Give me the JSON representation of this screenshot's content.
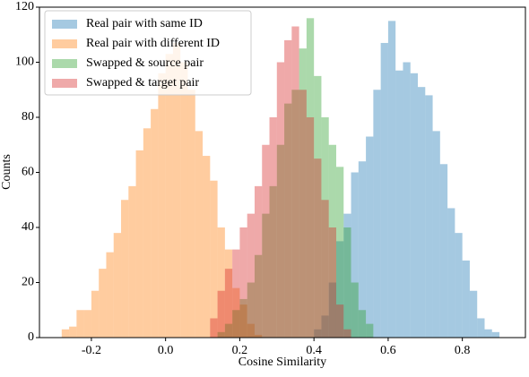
{
  "chart_data": {
    "type": "histogram",
    "xlabel": "Cosine Similarity",
    "ylabel": "Counts",
    "xlim": [
      -0.34,
      0.97
    ],
    "ylim": [
      0,
      120
    ],
    "xticks": [
      -0.2,
      {
        "value": 0,
        "label": "0.0"
      },
      0.2,
      0.4,
      0.6,
      0.8
    ],
    "yticks": [
      0,
      20,
      40,
      60,
      80,
      100,
      120
    ],
    "legend": "upper left",
    "opacity": 0.4,
    "series": [
      {
        "name": "Real pair with same ID",
        "color": "#1f77b4",
        "bins": [
          0.4,
          0.42,
          0.44,
          0.46,
          0.48,
          0.5,
          0.52,
          0.54,
          0.56,
          0.58,
          0.6,
          0.62,
          0.64,
          0.66,
          0.68,
          0.7,
          0.72,
          0.74,
          0.76,
          0.78,
          0.8,
          0.82,
          0.84,
          0.86,
          0.88,
          0.9
        ],
        "values": [
          3,
          8,
          20,
          35,
          45,
          60,
          64,
          73,
          90,
          107,
          115,
          97,
          100,
          96,
          91,
          88,
          75,
          63,
          47,
          38,
          28,
          17,
          7,
          3,
          2
        ]
      },
      {
        "name": "Real pair with different ID",
        "color": "#ff7f0e",
        "bins": [
          -0.28,
          -0.26,
          -0.24,
          -0.22,
          -0.2,
          -0.18,
          -0.16,
          -0.14,
          -0.12,
          -0.1,
          -0.08,
          -0.06,
          -0.04,
          -0.02,
          0.0,
          0.02,
          0.04,
          0.06,
          0.08,
          0.1,
          0.12,
          0.14,
          0.16,
          0.18,
          0.2,
          0.22,
          0.24,
          0.26
        ],
        "values": [
          3,
          4,
          10,
          10,
          17,
          25,
          31,
          38,
          50,
          55,
          68,
          76,
          83,
          96,
          103,
          107,
          100,
          90,
          75,
          66,
          57,
          40,
          32,
          18,
          12,
          5,
          1
        ]
      },
      {
        "name": "Swapped & source pair",
        "color": "#2ca02c",
        "bins": [
          0.14,
          0.16,
          0.18,
          0.2,
          0.22,
          0.24,
          0.26,
          0.28,
          0.3,
          0.32,
          0.34,
          0.36,
          0.38,
          0.4,
          0.42,
          0.44,
          0.46,
          0.48,
          0.5,
          0.52,
          0.54,
          0.56
        ],
        "values": [
          2,
          5,
          10,
          14,
          20,
          30,
          45,
          55,
          70,
          85,
          90,
          105,
          116,
          95,
          80,
          70,
          62,
          40,
          20,
          10,
          5
        ]
      },
      {
        "name": "Swapped & target pair",
        "color": "#d62728",
        "bins": [
          0.12,
          0.14,
          0.16,
          0.18,
          0.2,
          0.22,
          0.24,
          0.26,
          0.28,
          0.3,
          0.32,
          0.34,
          0.36,
          0.38,
          0.4,
          0.42,
          0.44,
          0.46,
          0.48,
          0.5
        ],
        "values": [
          7,
          17,
          25,
          32,
          40,
          45,
          55,
          70,
          80,
          100,
          108,
          113,
          90,
          80,
          65,
          50,
          40,
          12,
          3
        ]
      }
    ]
  }
}
